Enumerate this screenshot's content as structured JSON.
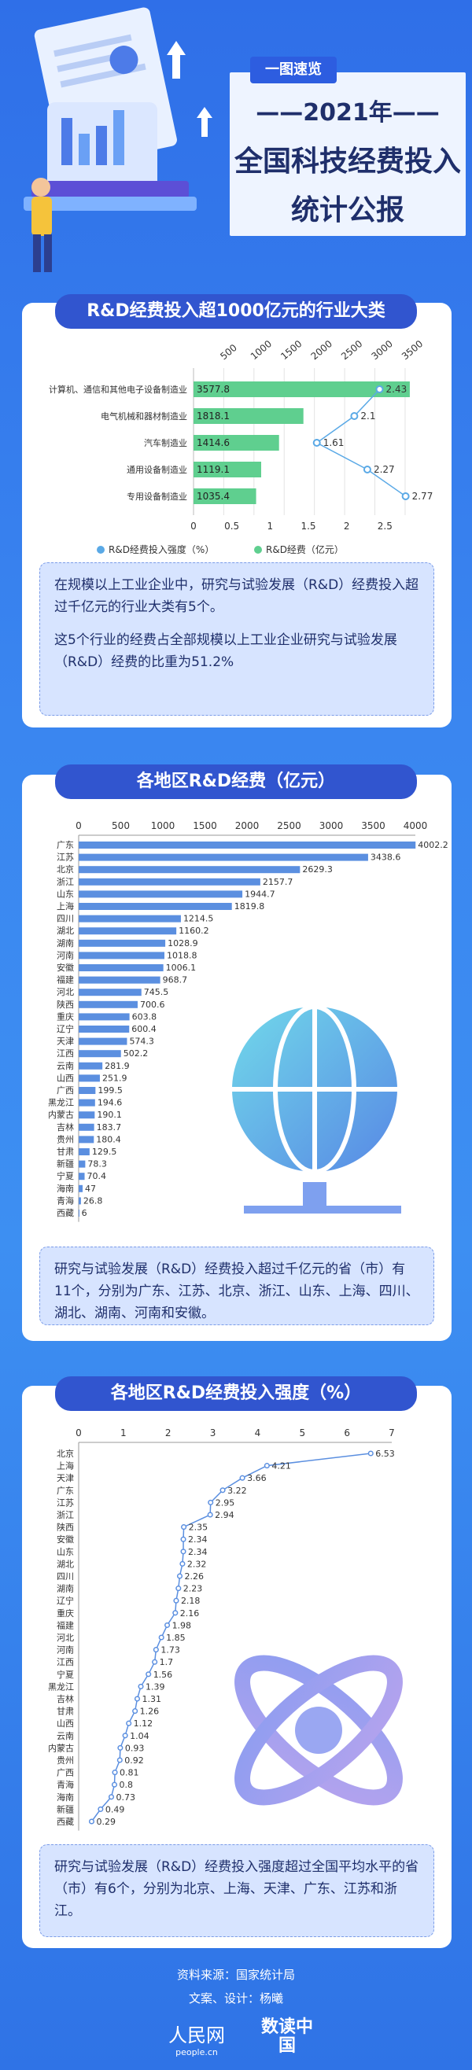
{
  "header": {
    "tag": "一图速览",
    "year": "——2021年——",
    "title_line1": "全国科技经费投入",
    "title_line2": "统计公报"
  },
  "section1": {
    "title": "R&D经费投入超1000亿元的行业大类",
    "note_p1": "在规模以上工业企业中，研究与试验发展（R&D）经费投入超过千亿元的行业大类有5个。",
    "note_p2": "这5个行业的经费占全部规模以上工业企业研究与试验发展（R&D）经费的比重为51.2%"
  },
  "section2": {
    "title": "各地区R&D经费（亿元）",
    "note": "研究与试验发展（R&D）经费投入超过千亿元的省（市）有11个，分别为广东、江苏、北京、浙江、山东、上海、四川、湖北、湖南、河南和安徽。"
  },
  "section3": {
    "title": "各地区R&D经费投入强度（%）",
    "note": "研究与试验发展（R&D）经费投入强度超过全国平均水平的省（市）有6个，分别为北京、上海、天津、广东、江苏和浙江。"
  },
  "footer": {
    "source": "资料来源：国家统计局",
    "credits": "文案、设计：杨曦",
    "logo1": "人民网",
    "logo1_sub": "people.cn",
    "logo2": "数读中国"
  },
  "colors": {
    "bar_green": "#5fcf8f",
    "line_blue": "#5aa9e6",
    "bar_blue": "#5b8fe0",
    "title_bg": "#3155cf"
  },
  "chart_data": [
    {
      "type": "bar",
      "orientation": "horizontal",
      "categories": [
        "计算机、通信和其他电子设备制造业",
        "电气机械和器材制造业",
        "汽车制造业",
        "通用设备制造业",
        "专用设备制造业"
      ],
      "series": [
        {
          "name": "R&D经费（亿元）",
          "values": [
            3577.8,
            1818.1,
            1414.6,
            1119.1,
            1035.4
          ],
          "axis": "top",
          "type": "bar"
        },
        {
          "name": "R&D经费投入强度（%）",
          "values": [
            2.43,
            2.1,
            1.61,
            2.27,
            2.77
          ],
          "axis": "bottom",
          "type": "line"
        }
      ],
      "top_ticks": [
        "500",
        "1000",
        "1500",
        "2000",
        "2500",
        "3000",
        "3500"
      ],
      "top_range": [
        0,
        3800
      ],
      "bottom_ticks": [
        "0",
        "0.5",
        "1",
        "1.5",
        "2",
        "2.5"
      ],
      "bottom_range": [
        0,
        3.0
      ],
      "legend": [
        "R&D经费投入强度（%）",
        "R&D经费（亿元）"
      ],
      "legend_placement": "bottom"
    },
    {
      "type": "bar",
      "orientation": "horizontal",
      "categories": [
        "广东",
        "江苏",
        "北京",
        "浙江",
        "山东",
        "上海",
        "四川",
        "湖北",
        "湖南",
        "河南",
        "安徽",
        "福建",
        "河北",
        "陕西",
        "重庆",
        "辽宁",
        "天津",
        "江西",
        "云南",
        "山西",
        "广西",
        "黑龙江",
        "内蒙古",
        "吉林",
        "贵州",
        "甘肃",
        "新疆",
        "宁夏",
        "海南",
        "青海",
        "西藏"
      ],
      "values": [
        4002.2,
        3438.6,
        2629.3,
        2157.7,
        1944.7,
        1819.8,
        1214.5,
        1160.2,
        1028.9,
        1018.8,
        1006.1,
        968.7,
        745.5,
        700.6,
        603.8,
        600.4,
        574.3,
        502.2,
        281.9,
        251.9,
        199.5,
        194.6,
        190.1,
        183.7,
        180.4,
        129.5,
        78.3,
        70.4,
        47,
        26.8,
        6
      ],
      "ticks": [
        "0",
        "500",
        "1000",
        "1500",
        "2000",
        "2500",
        "3000",
        "3500",
        "4000"
      ],
      "xlim": [
        0,
        4000
      ]
    },
    {
      "type": "line",
      "orientation": "horizontal",
      "categories": [
        "北京",
        "上海",
        "天津",
        "广东",
        "江苏",
        "浙江",
        "陕西",
        "安徽",
        "山东",
        "湖北",
        "四川",
        "湖南",
        "辽宁",
        "重庆",
        "福建",
        "河北",
        "河南",
        "江西",
        "宁夏",
        "黑龙江",
        "吉林",
        "甘肃",
        "山西",
        "云南",
        "内蒙古",
        "贵州",
        "广西",
        "青海",
        "海南",
        "新疆",
        "西藏"
      ],
      "values": [
        6.53,
        4.21,
        3.66,
        3.22,
        2.95,
        2.94,
        2.35,
        2.34,
        2.34,
        2.32,
        2.26,
        2.23,
        2.18,
        2.16,
        1.98,
        1.85,
        1.73,
        1.7,
        1.56,
        1.39,
        1.31,
        1.26,
        1.12,
        1.04,
        0.93,
        0.92,
        0.81,
        0.8,
        0.73,
        0.49,
        0.29
      ],
      "ticks": [
        "0",
        "1",
        "2",
        "3",
        "4",
        "5",
        "6",
        "7"
      ],
      "xlim": [
        0,
        7
      ]
    }
  ]
}
